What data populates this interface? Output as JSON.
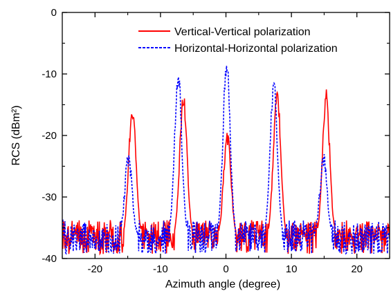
{
  "chart_data": {
    "type": "line",
    "title": "",
    "xlabel": "Azimuth angle (degree)",
    "ylabel": "RCS (dBm²)",
    "xlim": [
      -25,
      25
    ],
    "ylim": [
      -40,
      0
    ],
    "xticks": [
      -20,
      -10,
      0,
      10,
      20
    ],
    "yticks": [
      0,
      -10,
      -20,
      -30,
      -40
    ],
    "legend_position": "top-right",
    "grid": false,
    "noise_floor_db": -36.5,
    "series": [
      {
        "name": "Vertical-Vertical polarization",
        "color": "#ff0000",
        "style": "solid",
        "peaks": [
          {
            "x": -14.3,
            "y": -15.7
          },
          {
            "x": -6.5,
            "y": -14.0
          },
          {
            "x": 0.2,
            "y": -20.0
          },
          {
            "x": 7.8,
            "y": -12.8
          },
          {
            "x": 15.3,
            "y": -14.0
          }
        ]
      },
      {
        "name": "Horizontal-Horizontal polarization",
        "color": "#0000ff",
        "style": "dashed",
        "peaks": [
          {
            "x": -14.9,
            "y": -24.0
          },
          {
            "x": -7.3,
            "y": -10.4
          },
          {
            "x": 0.1,
            "y": -8.5
          },
          {
            "x": 7.3,
            "y": -11.8
          },
          {
            "x": 14.9,
            "y": -24.0
          }
        ]
      }
    ]
  }
}
